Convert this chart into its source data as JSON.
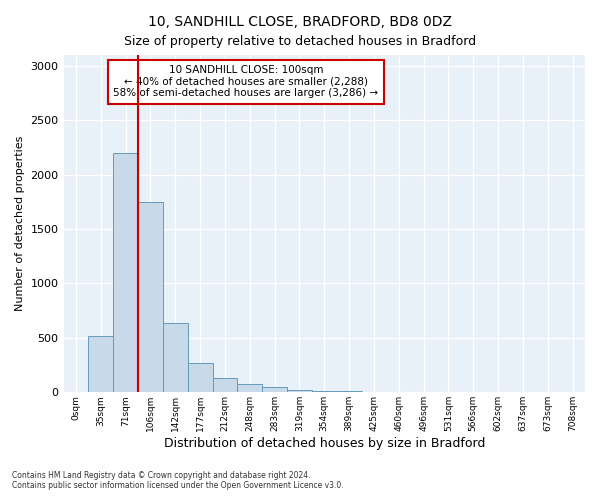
{
  "title_line1": "10, SANDHILL CLOSE, BRADFORD, BD8 0DZ",
  "title_line2": "Size of property relative to detached houses in Bradford",
  "xlabel": "Distribution of detached houses by size in Bradford",
  "ylabel": "Number of detached properties",
  "bar_color": "#c8daea",
  "bar_edge_color": "#6699bb",
  "background_color": "#e8f0f8",
  "annotation_box_color": "#ffffff",
  "annotation_border_color": "#cc0000",
  "vline_color": "#cc0000",
  "annotation_line1": "10 SANDHILL CLOSE: 100sqm",
  "annotation_line2": "← 40% of detached houses are smaller (2,288)",
  "annotation_line3": "58% of semi-detached houses are larger (3,286) →",
  "footer_line1": "Contains HM Land Registry data © Crown copyright and database right 2024.",
  "footer_line2": "Contains public sector information licensed under the Open Government Licence v3.0.",
  "bin_labels": [
    "0sqm",
    "35sqm",
    "71sqm",
    "106sqm",
    "142sqm",
    "177sqm",
    "212sqm",
    "248sqm",
    "283sqm",
    "319sqm",
    "354sqm",
    "389sqm",
    "425sqm",
    "460sqm",
    "496sqm",
    "531sqm",
    "566sqm",
    "602sqm",
    "637sqm",
    "673sqm",
    "708sqm"
  ],
  "bar_heights": [
    5,
    520,
    2200,
    1750,
    640,
    265,
    135,
    75,
    45,
    25,
    8,
    8,
    3,
    2,
    1,
    0,
    0,
    0,
    0,
    0,
    0
  ],
  "ylim": [
    0,
    3100
  ],
  "yticks": [
    0,
    500,
    1000,
    1500,
    2000,
    2500,
    3000
  ],
  "vline_x_index": 3,
  "title_fontsize": 10,
  "subtitle_fontsize": 9,
  "ylabel_fontsize": 8,
  "xlabel_fontsize": 9
}
